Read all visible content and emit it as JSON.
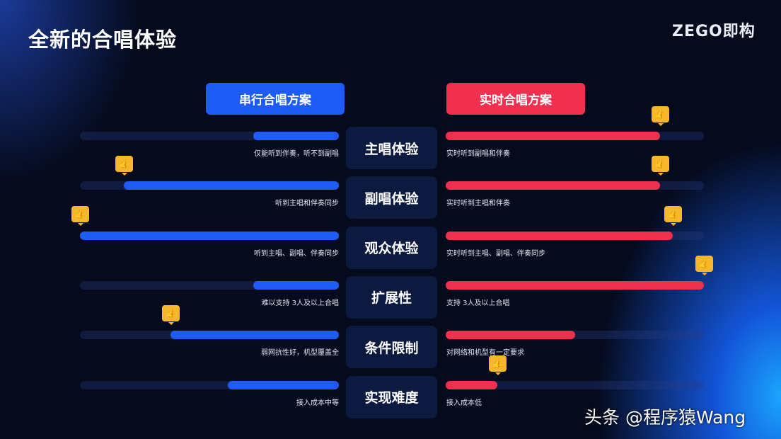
{
  "title": "全新的合唱体验",
  "logo": "ZEGO即构",
  "watermark": "头条 @程序猿Wang",
  "colors": {
    "serial": "#1f5cf5",
    "realtime": "#f0304f",
    "thumb": "#f6b72c",
    "background": "#050a1c"
  },
  "chart_data": {
    "type": "bar",
    "series": [
      {
        "name": "串行合唱方案",
        "values": [
          0.33,
          0.83,
          1.0,
          0.33,
          0.65,
          0.43
        ],
        "best": [
          false,
          true,
          true,
          false,
          true,
          false
        ],
        "notes": [
          "仅能听到伴奏，听不到副唱",
          "听到主唱和伴奏同步",
          "听到主唱、副唱、伴奏同步",
          "难以支持 3人及以上合唱",
          "弱网抗性好，机型覆盖全",
          "接入成本中等"
        ]
      },
      {
        "name": "实时合唱方案",
        "values": [
          0.83,
          0.83,
          0.88,
          1.0,
          0.5,
          0.2
        ],
        "best": [
          true,
          true,
          true,
          true,
          false,
          true
        ],
        "notes": [
          "实时听到副唱和伴奏",
          "实时听到主唱和伴奏",
          "实时听到主唱、副唱、伴奏同步",
          "支持 3人及以上合唱",
          "对网络和机型有一定要求",
          "接入成本低"
        ]
      }
    ],
    "categories": [
      "主唱体验",
      "副唱体验",
      "观众体验",
      "扩展性",
      "条件限制",
      "实现难度"
    ],
    "thumb_icon": "thumbs-up-icon"
  }
}
